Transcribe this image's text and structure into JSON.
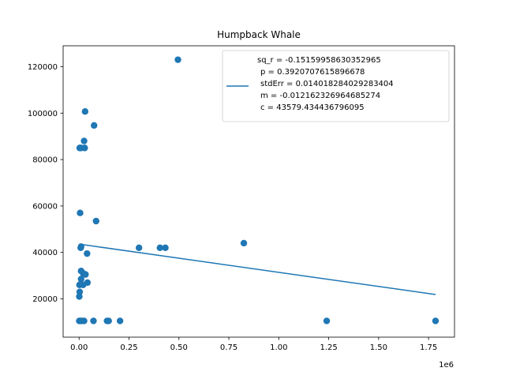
{
  "chart_data": {
    "type": "scatter",
    "title": "Humpback Whale",
    "xlabel": "",
    "ylabel": "",
    "x_offset_label": "1e6",
    "xlim": [
      -80000,
      1880000
    ],
    "ylim": [
      3500,
      129000
    ],
    "x_ticks": [
      0,
      250000,
      500000,
      750000,
      1000000,
      1250000,
      1500000,
      1750000
    ],
    "x_tick_labels": [
      "0.00",
      "0.25",
      "0.50",
      "0.75",
      "1.00",
      "1.25",
      "1.50",
      "1.75"
    ],
    "y_ticks": [
      20000,
      40000,
      60000,
      80000,
      100000,
      120000
    ],
    "y_tick_labels": [
      "20000",
      "40000",
      "60000",
      "80000",
      "100000",
      "120000"
    ],
    "grid": false,
    "legend_position": "top-right",
    "colors": {
      "points": "#1f77b4",
      "fit_line": "#1f77b4",
      "axes": "#000000"
    },
    "series": [
      {
        "kind": "scatter",
        "points": [
          [
            495000,
            123000
          ],
          [
            30000,
            100700
          ],
          [
            75000,
            94700
          ],
          [
            25000,
            88000
          ],
          [
            3000,
            85000
          ],
          [
            10000,
            85000
          ],
          [
            28000,
            85000
          ],
          [
            5000,
            57000
          ],
          [
            85000,
            53500
          ],
          [
            8000,
            42000
          ],
          [
            10000,
            42500
          ],
          [
            300000,
            42000
          ],
          [
            405000,
            42000
          ],
          [
            432000,
            42000
          ],
          [
            825000,
            44000
          ],
          [
            40000,
            39500
          ],
          [
            10000,
            32000
          ],
          [
            20000,
            31000
          ],
          [
            32000,
            30500
          ],
          [
            10000,
            28500
          ],
          [
            42000,
            27000
          ],
          [
            2000,
            26000
          ],
          [
            20000,
            26000
          ],
          [
            3000,
            23000
          ],
          [
            1000,
            21000
          ],
          [
            1000,
            10500
          ],
          [
            8000,
            10500
          ],
          [
            15000,
            10500
          ],
          [
            25000,
            10500
          ],
          [
            72000,
            10500
          ],
          [
            140000,
            10500
          ],
          [
            148000,
            10500
          ],
          [
            205000,
            10500
          ],
          [
            1240000,
            10500
          ],
          [
            1785000,
            10500
          ]
        ]
      },
      {
        "kind": "line",
        "slope": -0.012162326964685274,
        "intercept": 43579.434436796095,
        "x_range": [
          0,
          1785000
        ]
      }
    ],
    "legend": {
      "lines": [
        "sq_r = -0.15159958630352965",
        "p = 0.3920707615896678",
        "stdErr = 0.014018284029283404",
        "m = -0.012162326964685274",
        "c = 43579.434436796095"
      ]
    }
  }
}
